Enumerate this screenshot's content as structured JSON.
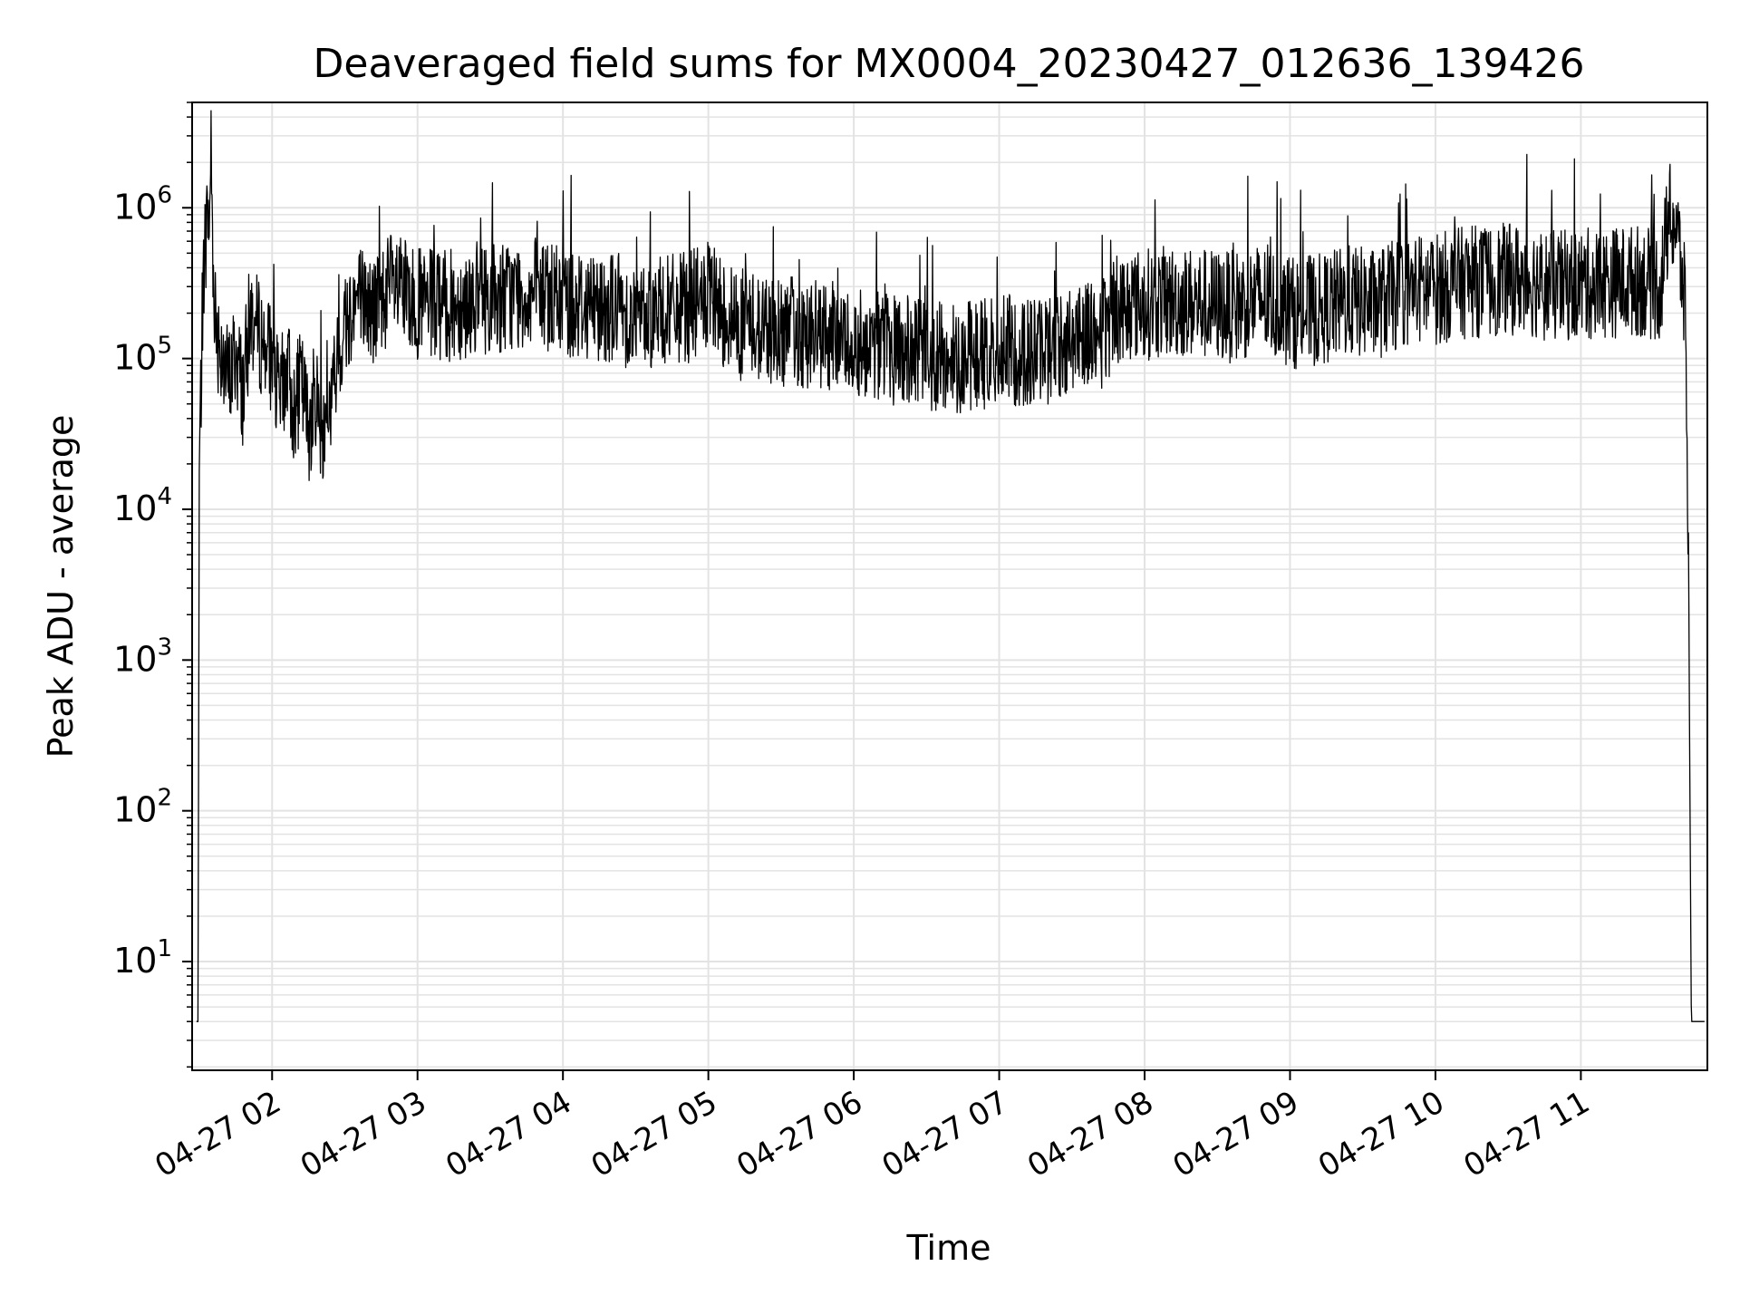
{
  "chart_data": {
    "type": "line",
    "title": "Deaveraged field sums for MX0004_20230427_012636_139426",
    "xlabel": "Time",
    "ylabel": "Peak ADU - average",
    "yscale": "log",
    "grid": true,
    "line_color": "#000000",
    "grid_color": "#e3e3e3",
    "x_tick_labels": [
      "04-27 02",
      "04-27 03",
      "04-27 04",
      "04-27 05",
      "04-27 06",
      "04-27 07",
      "04-27 08",
      "04-27 09",
      "04-27 10",
      "04-27 11"
    ],
    "x_tick_hours": [
      2,
      3,
      4,
      5,
      6,
      7,
      8,
      9,
      10,
      11
    ],
    "xlim_hours": [
      1.45,
      11.87
    ],
    "y_tick_values": [
      10,
      100,
      1000,
      10000,
      100000,
      1000000
    ],
    "y_tick_exponents": [
      "1",
      "2",
      "3",
      "4",
      "5",
      "6"
    ],
    "y_tick_base": "10",
    "ylim": [
      1.9,
      5000000
    ],
    "series": [
      {
        "x_hours": [
          1.48,
          1.49,
          1.5,
          1.51,
          1.52,
          1.53,
          1.55,
          1.57,
          1.58,
          1.59,
          1.6,
          1.61,
          1.62,
          1.65,
          1.7,
          1.75,
          1.8,
          1.85,
          1.9,
          2.0,
          2.05,
          2.1,
          2.15,
          2.2,
          2.25,
          2.3,
          2.35,
          2.4,
          2.45,
          2.5,
          2.6,
          2.7,
          2.8,
          3.0,
          3.2,
          3.4,
          3.6,
          3.8,
          4.0,
          4.2,
          4.4,
          4.5,
          4.6,
          4.8,
          5.0,
          5.2,
          5.4,
          5.6,
          5.8,
          6.0,
          6.2,
          6.4,
          6.6,
          6.8,
          7.0,
          7.2,
          7.4,
          7.6,
          7.7,
          7.8,
          8.0,
          8.2,
          8.4,
          8.6,
          8.8,
          9.0,
          9.2,
          9.4,
          9.6,
          9.8,
          10.0,
          10.2,
          10.4,
          10.6,
          10.8,
          11.0,
          11.2,
          11.4,
          11.55,
          11.6,
          11.63,
          11.66,
          11.69,
          11.72,
          11.74,
          11.76,
          11.78,
          11.8,
          11.85
        ],
        "y": [
          4,
          4,
          25000,
          55000,
          180000,
          400000,
          800000,
          900000,
          2600000,
          700000,
          300000,
          200000,
          150000,
          120000,
          70000,
          110000,
          60000,
          200000,
          150000,
          100000,
          50000,
          90000,
          45000,
          70000,
          35000,
          60000,
          30000,
          50000,
          90000,
          180000,
          260000,
          200000,
          300000,
          230000,
          220000,
          250000,
          260000,
          270000,
          240000,
          230000,
          220000,
          180000,
          200000,
          210000,
          250000,
          170000,
          160000,
          150000,
          140000,
          130000,
          120000,
          110000,
          100000,
          105000,
          115000,
          110000,
          120000,
          160000,
          130000,
          220000,
          230000,
          240000,
          230000,
          220000,
          250000,
          200000,
          210000,
          240000,
          230000,
          280000,
          290000,
          320000,
          330000,
          340000,
          300000,
          310000,
          320000,
          330000,
          300000,
          800000,
          850000,
          700000,
          400000,
          200000,
          4000,
          4,
          4,
          4,
          4
        ]
      }
    ]
  }
}
